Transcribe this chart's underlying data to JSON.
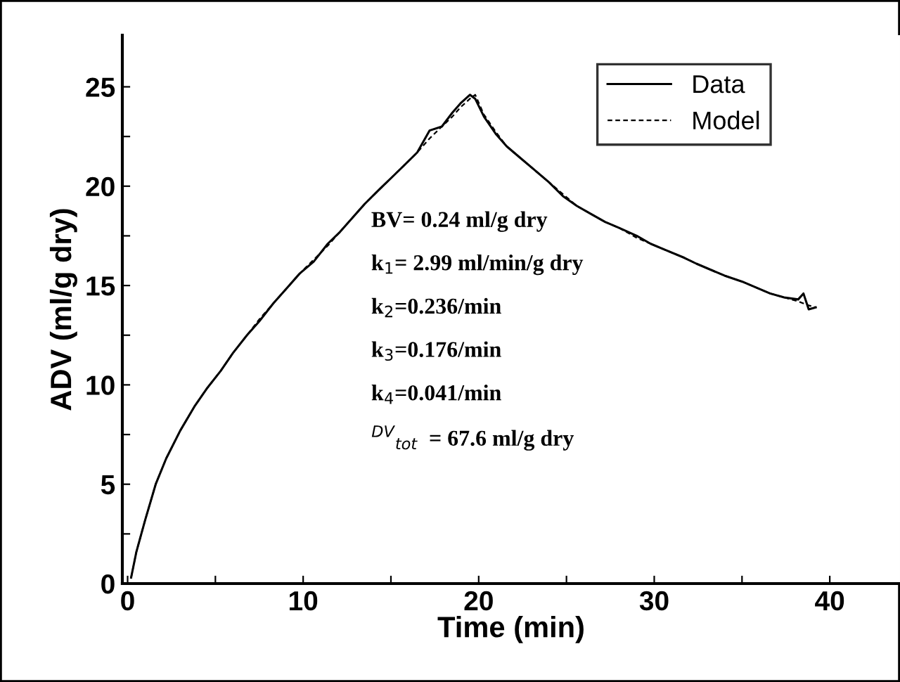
{
  "chart_data": {
    "type": "line",
    "xlabel": "Time (min)",
    "ylabel": "ADV (ml/g dry)",
    "xlim": [
      -0.3,
      44
    ],
    "ylim": [
      0,
      27.6
    ],
    "xticks": [
      0,
      {
        "value": 5,
        "label": null
      },
      10,
      {
        "value": 15,
        "label": null
      },
      20,
      {
        "value": 25,
        "label": null
      },
      30,
      {
        "value": 35,
        "label": null
      },
      40
    ],
    "yticks": [
      0,
      {
        "value": 2.5,
        "label": null
      },
      5,
      {
        "value": 7.5,
        "label": null
      },
      10,
      {
        "value": 12.5,
        "label": null
      },
      15,
      {
        "value": 17.5,
        "label": null
      },
      20,
      {
        "value": 22.5,
        "label": null
      },
      25
    ],
    "legend": "top right",
    "grid": false,
    "series": [
      {
        "name": "Data",
        "color": "#000000",
        "line_style": "solid",
        "x": [
          0.2,
          0.5,
          1,
          1.6,
          2.2,
          3,
          3.8,
          4.5,
          5.3,
          6,
          6.8,
          7.5,
          8.3,
          9.1,
          9.8,
          10.6,
          11.4,
          12.1,
          12.8,
          13.5,
          14.3,
          15,
          15.7,
          16.5,
          17.2,
          17.9,
          18.5,
          19,
          19.5,
          19.8,
          20.3,
          21,
          21.6,
          22.4,
          23.2,
          24,
          24.8,
          25.6,
          26.4,
          27.2,
          28,
          29,
          29.8,
          30.6,
          31.7,
          32.4,
          33.2,
          34,
          35,
          35.8,
          36.6,
          37.4,
          38.2,
          38.5,
          38.8,
          39.2
        ],
        "values": [
          0.3,
          1.6,
          3.2,
          5.0,
          6.3,
          7.7,
          8.9,
          9.8,
          10.7,
          11.6,
          12.5,
          13.2,
          14.1,
          14.9,
          15.6,
          16.2,
          17.1,
          17.7,
          18.4,
          19.1,
          19.8,
          20.4,
          21.0,
          21.7,
          22.8,
          23.0,
          23.7,
          24.2,
          24.6,
          24.4,
          23.5,
          22.6,
          22.0,
          21.4,
          20.8,
          20.2,
          19.5,
          19.0,
          18.6,
          18.2,
          17.9,
          17.5,
          17.1,
          16.8,
          16.4,
          16.1,
          15.8,
          15.5,
          15.2,
          14.9,
          14.6,
          14.4,
          14.3,
          14.6,
          13.8,
          13.9
        ]
      },
      {
        "name": "Model",
        "color": "#000000",
        "line_style": "dashed",
        "x": [
          0.2,
          0.5,
          1,
          1.6,
          2.2,
          3,
          3.8,
          4.5,
          5.3,
          6,
          6.8,
          7.5,
          8.3,
          9.1,
          9.8,
          10.6,
          11.4,
          12.1,
          12.8,
          13.5,
          14.3,
          15,
          15.7,
          16.5,
          17.2,
          17.9,
          18.5,
          19,
          19.5,
          19.8,
          20.3,
          21,
          21.6,
          22.4,
          23.2,
          24,
          24.8,
          25.6,
          26.4,
          27.2,
          28,
          29,
          29.8,
          30.6,
          31.7,
          32.4,
          33.2,
          34,
          35,
          35.8,
          36.6,
          37.4,
          38.2,
          38.8,
          39.2
        ],
        "values": [
          0.3,
          1.6,
          3.2,
          5.0,
          6.3,
          7.7,
          8.9,
          9.8,
          10.7,
          11.6,
          12.5,
          13.3,
          14.1,
          14.9,
          15.6,
          16.3,
          17.0,
          17.7,
          18.4,
          19.1,
          19.8,
          20.4,
          21.0,
          21.7,
          22.4,
          23.0,
          23.5,
          24.0,
          24.4,
          24.6,
          23.6,
          22.7,
          22.0,
          21.4,
          20.8,
          20.2,
          19.6,
          19.0,
          18.6,
          18.2,
          17.9,
          17.4,
          17.1,
          16.8,
          16.4,
          16.1,
          15.8,
          15.5,
          15.2,
          14.9,
          14.6,
          14.4,
          14.2,
          14.0,
          13.9
        ]
      }
    ],
    "annotations": [
      "BV= 0.24 ml/g dry",
      "k$_{1}$= 2.99 ml/min/g dry",
      "k$_{2}$=0.236/min",
      "k$_{3}$=0.176/min",
      "k$_{4}$=0.041/min",
      "$^{DV}$$_{tot}$  = 67.6 ml/g dry"
    ]
  }
}
